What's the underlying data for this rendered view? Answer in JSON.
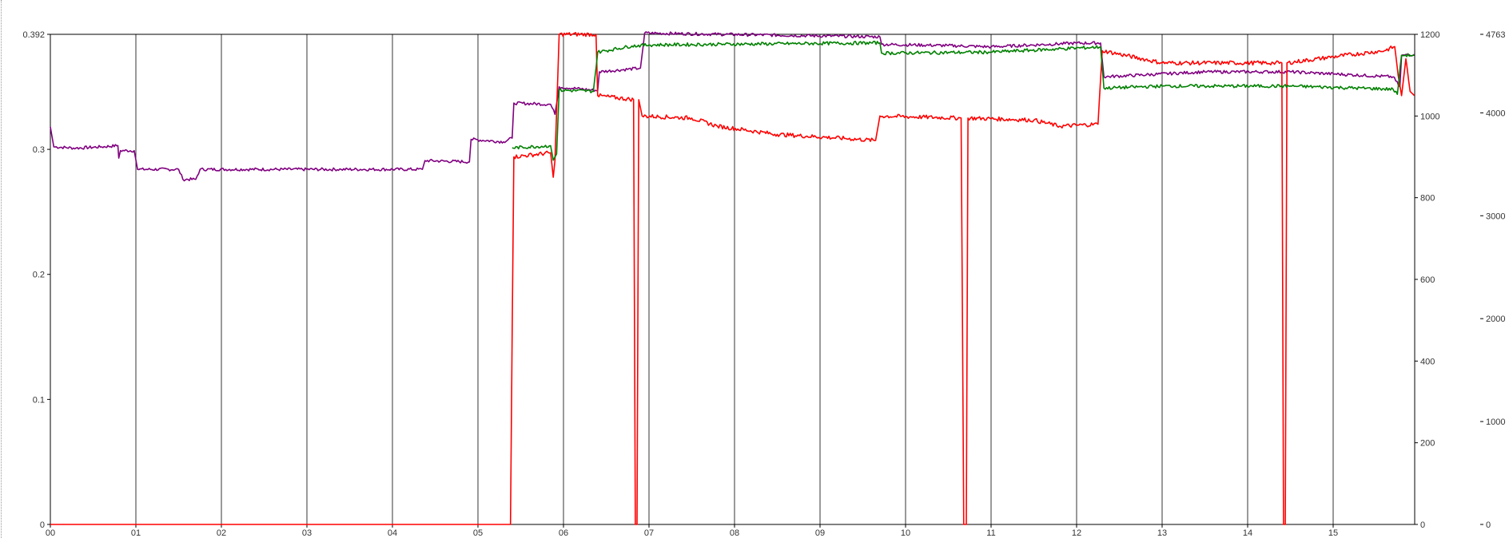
{
  "chart_data": {
    "type": "line",
    "title": "",
    "xlabel": "",
    "x_ticks": [
      "00",
      "01",
      "02",
      "03",
      "04",
      "05",
      "06",
      "07",
      "08",
      "09",
      "10",
      "11",
      "12",
      "13",
      "14",
      "15"
    ],
    "xlim": [
      0,
      16
    ],
    "left_axis": {
      "ticks": [
        "0",
        "0.1",
        "0.2",
        "0.3",
        "0.392"
      ],
      "lim": [
        0,
        0.392
      ]
    },
    "right_axis_1": {
      "ticks": [
        "0",
        "200",
        "400",
        "600",
        "800",
        "1000",
        "1200"
      ],
      "lim": [
        0,
        1200
      ]
    },
    "right_axis_2": {
      "ticks": [
        "0",
        "1000",
        "2000",
        "3000",
        "4000",
        "4763"
      ],
      "lim": [
        0,
        4763
      ]
    },
    "grid": {
      "vertical": true,
      "horizontal": false
    },
    "colors": {
      "purple": "#800080",
      "red": "#ff0000",
      "green": "#008000",
      "grid": "#000000"
    },
    "series": [
      {
        "color": "#800080",
        "axis": "left",
        "noise": 0.0012,
        "points": [
          [
            0.0,
            0.318
          ],
          [
            0.04,
            0.302
          ],
          [
            0.3,
            0.301
          ],
          [
            0.6,
            0.302
          ],
          [
            0.79,
            0.303
          ],
          [
            0.8,
            0.293
          ],
          [
            0.82,
            0.299
          ],
          [
            0.98,
            0.299
          ],
          [
            1.02,
            0.284
          ],
          [
            1.5,
            0.284
          ],
          [
            1.55,
            0.276
          ],
          [
            1.7,
            0.276
          ],
          [
            1.75,
            0.284
          ],
          [
            3.4,
            0.284
          ],
          [
            4.35,
            0.284
          ],
          [
            4.38,
            0.291
          ],
          [
            4.9,
            0.29
          ],
          [
            4.92,
            0.308
          ],
          [
            5.3,
            0.306
          ],
          [
            5.4,
            0.309
          ],
          [
            5.42,
            0.337
          ],
          [
            5.85,
            0.336
          ],
          [
            5.9,
            0.328
          ],
          [
            5.95,
            0.35
          ],
          [
            6.4,
            0.347
          ],
          [
            6.42,
            0.362
          ],
          [
            6.9,
            0.365
          ],
          [
            6.95,
            0.393
          ],
          [
            9.7,
            0.39
          ],
          [
            9.72,
            0.384
          ],
          [
            10.5,
            0.383
          ],
          [
            11.0,
            0.382
          ],
          [
            12.0,
            0.385
          ],
          [
            12.28,
            0.385
          ],
          [
            12.32,
            0.358
          ],
          [
            13.5,
            0.362
          ],
          [
            14.5,
            0.362
          ],
          [
            15.7,
            0.358
          ],
          [
            15.78,
            0.35
          ],
          [
            15.8,
            0.375
          ],
          [
            15.95,
            0.376
          ]
        ]
      },
      {
        "color": "#ff0000",
        "axis": "right_1",
        "noise": 5,
        "points": [
          [
            0.0,
            0
          ],
          [
            5.38,
            0
          ],
          [
            5.4,
            470
          ],
          [
            5.42,
            900
          ],
          [
            5.85,
            910
          ],
          [
            5.88,
            850
          ],
          [
            5.9,
            890
          ],
          [
            5.95,
            1200
          ],
          [
            6.38,
            1200
          ],
          [
            6.4,
            1050
          ],
          [
            6.82,
            1040
          ],
          [
            6.84,
            0
          ],
          [
            6.86,
            0
          ],
          [
            6.88,
            1040
          ],
          [
            6.92,
            1000
          ],
          [
            7.5,
            995
          ],
          [
            7.8,
            975
          ],
          [
            8.5,
            955
          ],
          [
            9.3,
            945
          ],
          [
            9.65,
            940
          ],
          [
            9.7,
            1000
          ],
          [
            10.65,
            995
          ],
          [
            10.68,
            0
          ],
          [
            10.71,
            0
          ],
          [
            10.73,
            995
          ],
          [
            11.5,
            990
          ],
          [
            11.8,
            975
          ],
          [
            12.25,
            980
          ],
          [
            12.3,
            1160
          ],
          [
            13.0,
            1130
          ],
          [
            14.3,
            1130
          ],
          [
            14.4,
            1130
          ],
          [
            14.42,
            0
          ],
          [
            14.44,
            0
          ],
          [
            14.46,
            1130
          ],
          [
            15.0,
            1145
          ],
          [
            15.6,
            1160
          ],
          [
            15.72,
            1170
          ],
          [
            15.76,
            1100
          ],
          [
            15.8,
            1050
          ],
          [
            15.85,
            1140
          ],
          [
            15.9,
            1060
          ],
          [
            15.95,
            1050
          ]
        ]
      },
      {
        "color": "#008000",
        "axis": "right_2",
        "noise": 16,
        "points": [
          [
            5.4,
            3660
          ],
          [
            5.85,
            3680
          ],
          [
            5.88,
            3540
          ],
          [
            5.92,
            3600
          ],
          [
            5.95,
            4220
          ],
          [
            6.35,
            4210
          ],
          [
            6.4,
            4590
          ],
          [
            6.8,
            4650
          ],
          [
            7.0,
            4660
          ],
          [
            9.7,
            4680
          ],
          [
            9.72,
            4580
          ],
          [
            11.0,
            4590
          ],
          [
            12.28,
            4640
          ],
          [
            12.32,
            4240
          ],
          [
            13.0,
            4260
          ],
          [
            14.5,
            4260
          ],
          [
            15.7,
            4230
          ],
          [
            15.75,
            4180
          ],
          [
            15.8,
            4560
          ],
          [
            15.95,
            4560
          ]
        ]
      }
    ]
  }
}
